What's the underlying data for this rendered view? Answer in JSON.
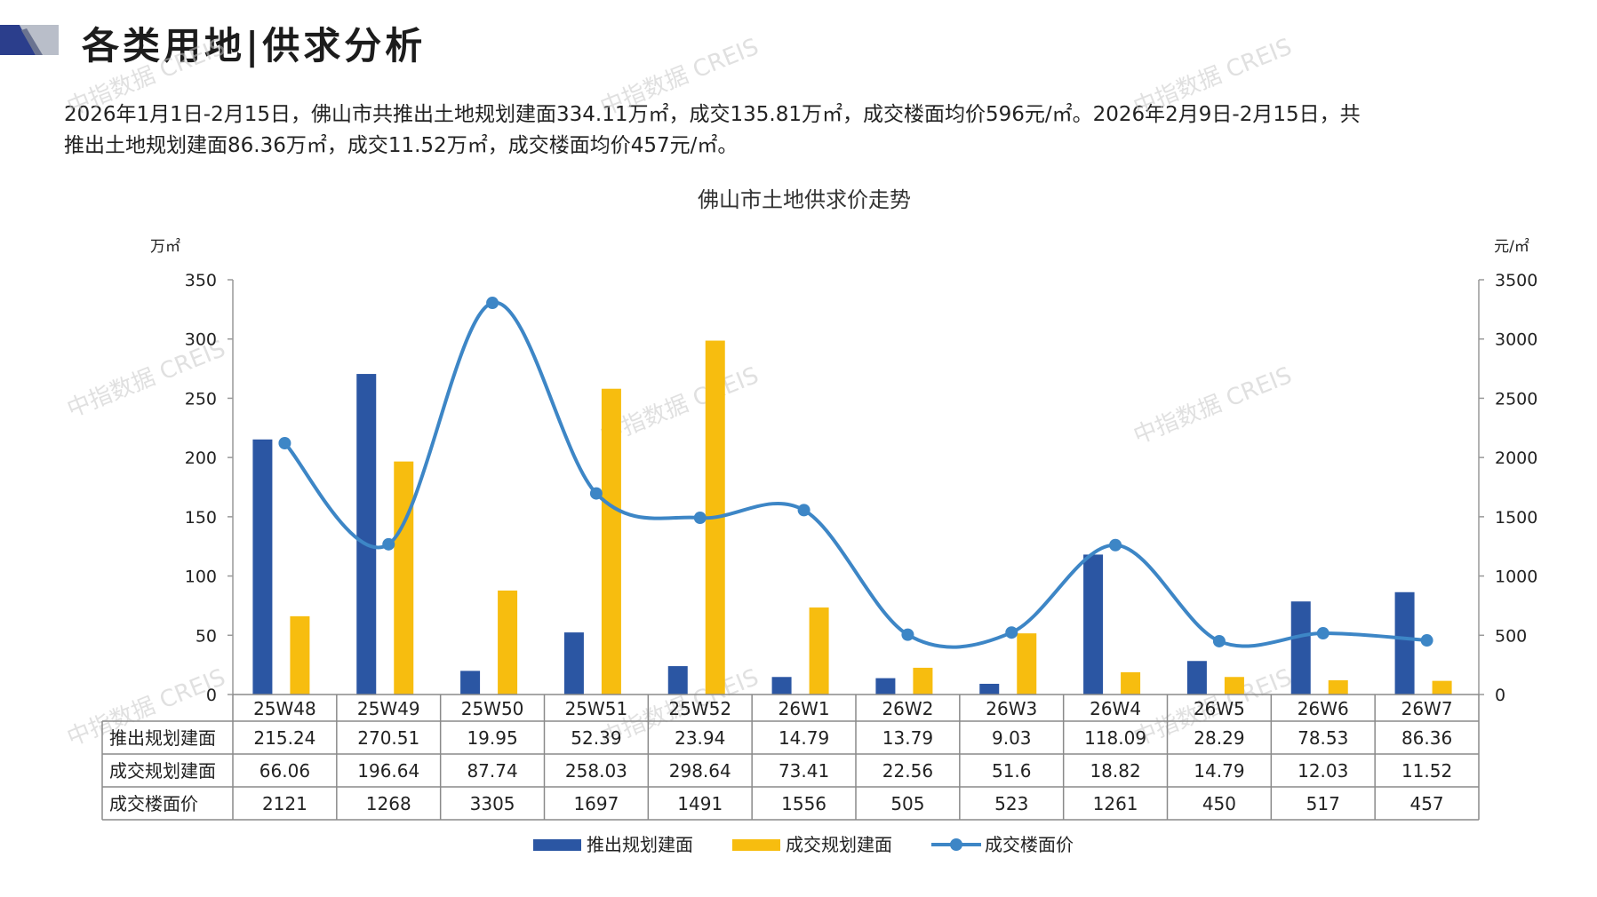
{
  "header": {
    "title": "各类用地|供求分析"
  },
  "summary": {
    "line1": "2026年1月1日-2月15日，佛山市共推出土地规划建面334.11万㎡，成交135.81万㎡，成交楼面均价596元/㎡。2026年2月9日-2月15日，共",
    "line2": "推出土地规划建面86.36万㎡，成交11.52万㎡，成交楼面均价457元/㎡。"
  },
  "watermark": "中指数据 CREIS",
  "colors": {
    "supply": "#2b56a3",
    "deal": "#f7bd0f",
    "price": "#3d86c6",
    "logo_dark": "#2b3e8c",
    "logo_light": "#b9bec9"
  },
  "chart_data": {
    "type": "bar",
    "title": "佛山市土地供求价走势",
    "ylabel_left": "万㎡",
    "ylabel_right": "元/㎡",
    "ylim_left": [
      0,
      350
    ],
    "ylim_right": [
      0,
      3500
    ],
    "yticks_left": [
      "0",
      "50",
      "100",
      "150",
      "200",
      "250",
      "300",
      "350"
    ],
    "yticks_right": [
      "0",
      "500",
      "1000",
      "1500",
      "2000",
      "2500",
      "3000",
      "3500"
    ],
    "categories": [
      "25W48",
      "25W49",
      "25W50",
      "25W51",
      "25W52",
      "26W1",
      "26W2",
      "26W3",
      "26W4",
      "26W5",
      "26W6",
      "26W7"
    ],
    "series": [
      {
        "name": "推出规划建面",
        "kind": "bar",
        "axis": "left",
        "values": [
          215.24,
          270.51,
          19.95,
          52.39,
          23.94,
          14.79,
          13.79,
          9.03,
          118.09,
          28.29,
          78.53,
          86.36
        ],
        "labels": [
          "215.24",
          "270.51",
          "19.95",
          "52.39",
          "23.94",
          "14.79",
          "13.79",
          "9.03",
          "118.09",
          "28.29",
          "78.53",
          "86.36"
        ]
      },
      {
        "name": "成交规划建面",
        "kind": "bar",
        "axis": "left",
        "values": [
          66.06,
          196.64,
          87.74,
          258.03,
          298.64,
          73.41,
          22.56,
          51.6,
          18.82,
          14.79,
          12.03,
          11.52
        ],
        "labels": [
          "66.06",
          "196.64",
          "87.74",
          "258.03",
          "298.64",
          "73.41",
          "22.56",
          "51.6",
          "18.82",
          "14.79",
          "12.03",
          "11.52"
        ]
      },
      {
        "name": "成交楼面价",
        "kind": "line",
        "axis": "right",
        "values": [
          2121,
          1268,
          3305,
          1697,
          1491,
          1556,
          505,
          523,
          1261,
          450,
          517,
          457
        ],
        "labels": [
          "2121",
          "1268",
          "3305",
          "1697",
          "1491",
          "1556",
          "505",
          "523",
          "1261",
          "450",
          "517",
          "457"
        ]
      }
    ],
    "legend": "bottom"
  }
}
